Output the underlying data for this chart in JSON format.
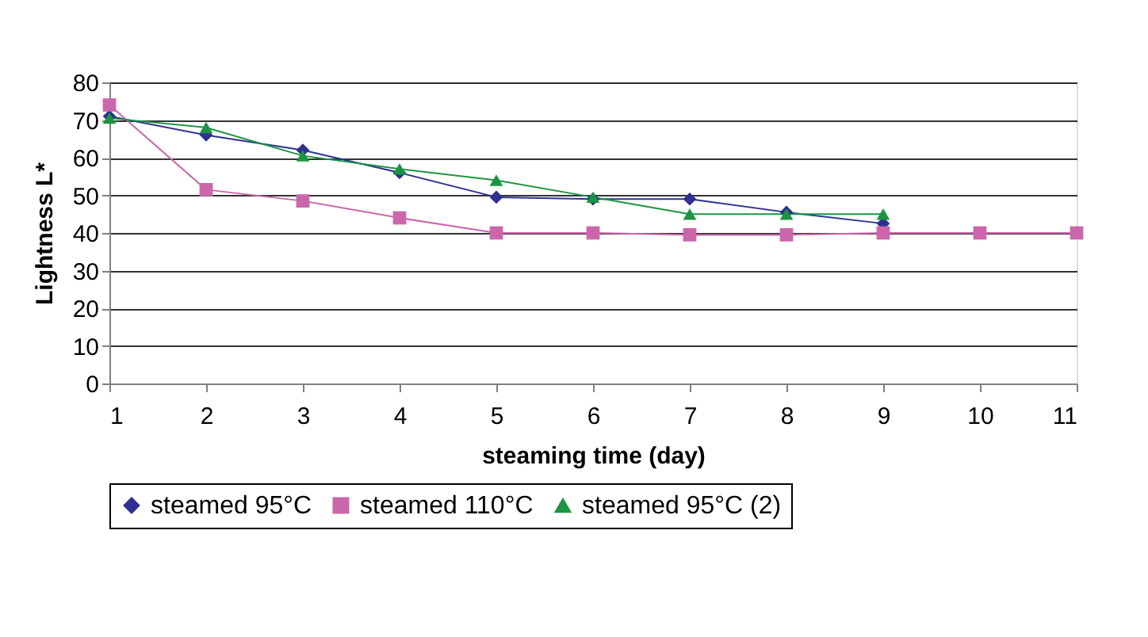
{
  "chart_data": {
    "type": "line",
    "xlabel": "steaming time (day)",
    "ylabel": "Lightness L*",
    "x": [
      1,
      2,
      3,
      4,
      5,
      6,
      7,
      8,
      9,
      10,
      11
    ],
    "series": [
      {
        "name": "steamed 95°C",
        "color": "#2e3192",
        "marker": "diamond",
        "values": [
          71,
          66,
          62,
          56,
          49.5,
          49,
          49,
          45.5,
          42.5,
          null,
          null
        ]
      },
      {
        "name": "steamed 110°C",
        "color": "#cc66aa",
        "marker": "square",
        "values": [
          74,
          51.5,
          48.5,
          44,
          40,
          40,
          39.5,
          39.5,
          40,
          40,
          40
        ]
      },
      {
        "name": "steamed 95°C (2)",
        "color": "#1a9641",
        "marker": "triangle",
        "values": [
          70.5,
          68,
          60.5,
          57,
          54,
          49.5,
          45,
          45,
          45,
          null,
          null
        ]
      }
    ],
    "xlim": [
      1,
      11
    ],
    "xticks": [
      1,
      2,
      3,
      4,
      5,
      6,
      7,
      8,
      9,
      10,
      11
    ],
    "ylim": [
      0,
      80
    ],
    "yticks": [
      0,
      10,
      20,
      30,
      40,
      50,
      60,
      70,
      80
    ],
    "grid": "y",
    "legend": "bottom",
    "line_style": "solid"
  }
}
